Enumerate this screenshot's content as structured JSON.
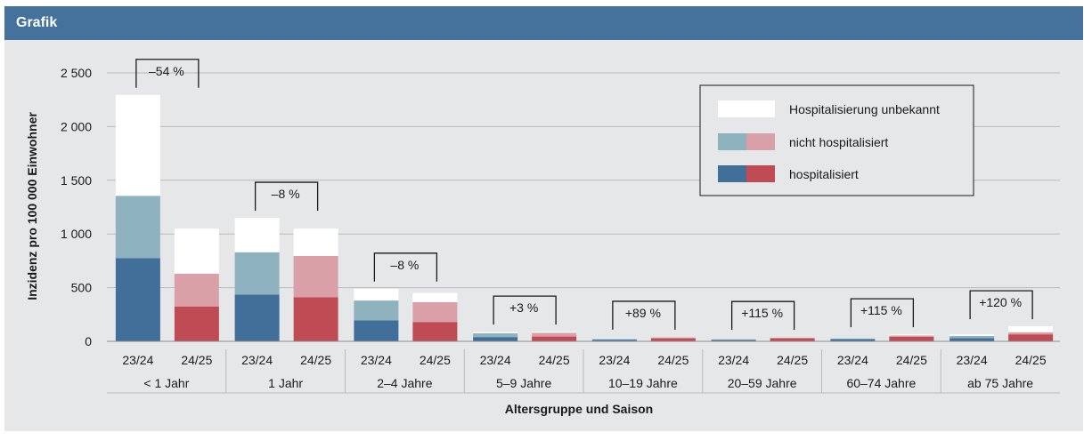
{
  "header": {
    "title": "Grafik"
  },
  "chart_data": {
    "type": "bar",
    "stacked": true,
    "ylabel": "Inzidenz pro 100 000 Einwohner",
    "xlabel": "Altersgruppe und Saison",
    "ylim": [
      0,
      2500
    ],
    "yticks": [
      0,
      500,
      1000,
      1500,
      2000,
      2500
    ],
    "ytick_labels": [
      "0",
      "500",
      "1 000",
      "1 500",
      "2 000",
      "2 500"
    ],
    "grid": true,
    "legend_position": "top-right",
    "legend": [
      {
        "key": "unknown",
        "label": "Hospitalisierung unbekannt"
      },
      {
        "key": "not_hosp",
        "label": "nicht hospitalisiert"
      },
      {
        "key": "hosp",
        "label": "hospitalisiert"
      }
    ],
    "colors": {
      "23/24": {
        "hosp": "#426e9a",
        "not_hosp": "#8fb2bf",
        "unknown": "#ffffff"
      },
      "24/25": {
        "hosp": "#bf4b55",
        "not_hosp": "#d9a1a7",
        "unknown": "#ffffff"
      }
    },
    "groups": [
      {
        "label": "< 1 Jahr",
        "change": "–54 %",
        "bars": [
          {
            "season": "23/24",
            "hosp": 775,
            "not_hosp": 580,
            "unknown": 940
          },
          {
            "season": "24/25",
            "hosp": 325,
            "not_hosp": 305,
            "unknown": 420
          }
        ]
      },
      {
        "label": "1 Jahr",
        "change": "–8 %",
        "bars": [
          {
            "season": "23/24",
            "hosp": 435,
            "not_hosp": 395,
            "unknown": 320
          },
          {
            "season": "24/25",
            "hosp": 410,
            "not_hosp": 385,
            "unknown": 255
          }
        ]
      },
      {
        "label": "2–4 Jahre",
        "change": "–8 %",
        "bars": [
          {
            "season": "23/24",
            "hosp": 195,
            "not_hosp": 185,
            "unknown": 110
          },
          {
            "season": "24/25",
            "hosp": 180,
            "not_hosp": 185,
            "unknown": 85
          }
        ]
      },
      {
        "label": "5–9 Jahre",
        "change": "+3 %",
        "bars": [
          {
            "season": "23/24",
            "hosp": 40,
            "not_hosp": 35,
            "unknown": 10
          },
          {
            "season": "24/25",
            "hosp": 45,
            "not_hosp": 35,
            "unknown": 10
          }
        ]
      },
      {
        "label": "10–19 Jahre",
        "change": "+89 %",
        "bars": [
          {
            "season": "23/24",
            "hosp": 15,
            "not_hosp": 8,
            "unknown": 4
          },
          {
            "season": "24/25",
            "hosp": 28,
            "not_hosp": 10,
            "unknown": 4
          }
        ]
      },
      {
        "label": "20–59 Jahre",
        "change": "+115 %",
        "bars": [
          {
            "season": "23/24",
            "hosp": 13,
            "not_hosp": 7,
            "unknown": 3
          },
          {
            "season": "24/25",
            "hosp": 28,
            "not_hosp": 8,
            "unknown": 4
          }
        ]
      },
      {
        "label": "60–74 Jahre",
        "change": "+115 %",
        "bars": [
          {
            "season": "23/24",
            "hosp": 20,
            "not_hosp": 8,
            "unknown": 5
          },
          {
            "season": "24/25",
            "hosp": 43,
            "not_hosp": 12,
            "unknown": 10
          }
        ]
      },
      {
        "label": "ab 75 Jahre",
        "change": "+120 %",
        "bars": [
          {
            "season": "23/24",
            "hosp": 30,
            "not_hosp": 20,
            "unknown": 15
          },
          {
            "season": "24/25",
            "hosp": 65,
            "not_hosp": 20,
            "unknown": 55
          }
        ]
      }
    ]
  }
}
